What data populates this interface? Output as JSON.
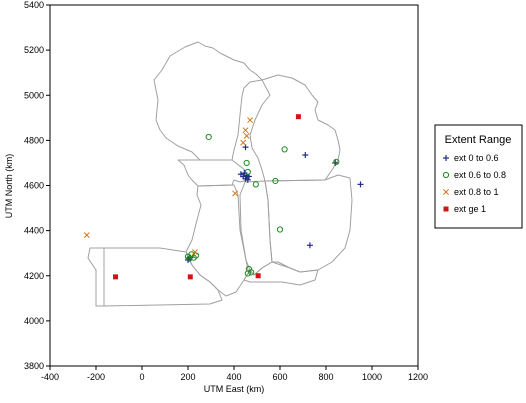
{
  "chart_data": {
    "type": "scatter",
    "title": "",
    "xlabel": "UTM East (km)",
    "ylabel": "UTM North (km)",
    "xlim": [
      -400,
      1200
    ],
    "ylim": [
      3800,
      5400
    ],
    "xticks": [
      "-400",
      "-200",
      "0",
      "200",
      "400",
      "600",
      "800",
      "1000",
      "1200"
    ],
    "yticks": [
      "3800",
      "4000",
      "4200",
      "4400",
      "4600",
      "4800",
      "5000",
      "5200",
      "5400"
    ],
    "legend": {
      "title": "Extent Range",
      "placement": "right"
    },
    "series": [
      {
        "name": "ext 0 to 0.6",
        "marker": "plus",
        "color": "#1f2a8c",
        "points": [
          {
            "x": 430,
            "y": 4650
          },
          {
            "x": 440,
            "y": 4640
          },
          {
            "x": 445,
            "y": 4655
          },
          {
            "x": 450,
            "y": 4630
          },
          {
            "x": 455,
            "y": 4645
          },
          {
            "x": 460,
            "y": 4625
          },
          {
            "x": 465,
            "y": 4640
          },
          {
            "x": 450,
            "y": 4770
          },
          {
            "x": 710,
            "y": 4735
          },
          {
            "x": 730,
            "y": 4335
          },
          {
            "x": 950,
            "y": 4605
          },
          {
            "x": 840,
            "y": 4700
          },
          {
            "x": 210,
            "y": 4280
          },
          {
            "x": 200,
            "y": 4270
          }
        ]
      },
      {
        "name": "ext 0.6 to 0.8",
        "marker": "circle",
        "color": "#1e8a1e",
        "points": [
          {
            "x": 290,
            "y": 4815
          },
          {
            "x": 455,
            "y": 4700
          },
          {
            "x": 460,
            "y": 4660
          },
          {
            "x": 495,
            "y": 4605
          },
          {
            "x": 580,
            "y": 4620
          },
          {
            "x": 620,
            "y": 4760
          },
          {
            "x": 845,
            "y": 4705
          },
          {
            "x": 600,
            "y": 4405
          },
          {
            "x": 200,
            "y": 4285
          },
          {
            "x": 215,
            "y": 4295
          },
          {
            "x": 225,
            "y": 4280
          },
          {
            "x": 235,
            "y": 4290
          },
          {
            "x": 205,
            "y": 4275
          },
          {
            "x": 465,
            "y": 4230
          },
          {
            "x": 460,
            "y": 4210
          },
          {
            "x": 475,
            "y": 4215
          }
        ]
      },
      {
        "name": "ext 0.8 to 1",
        "marker": "x",
        "color": "#d2781e",
        "points": [
          {
            "x": -240,
            "y": 4380
          },
          {
            "x": 405,
            "y": 4565
          },
          {
            "x": 440,
            "y": 4790
          },
          {
            "x": 450,
            "y": 4845
          },
          {
            "x": 455,
            "y": 4820
          },
          {
            "x": 470,
            "y": 4890
          },
          {
            "x": 230,
            "y": 4305
          }
        ]
      },
      {
        "name": "ext ge 1",
        "marker": "square",
        "color": "#d21414",
        "points": [
          {
            "x": -115,
            "y": 4195
          },
          {
            "x": 210,
            "y": 4195
          },
          {
            "x": 505,
            "y": 4200
          },
          {
            "x": 680,
            "y": 4905
          }
        ]
      }
    ]
  }
}
